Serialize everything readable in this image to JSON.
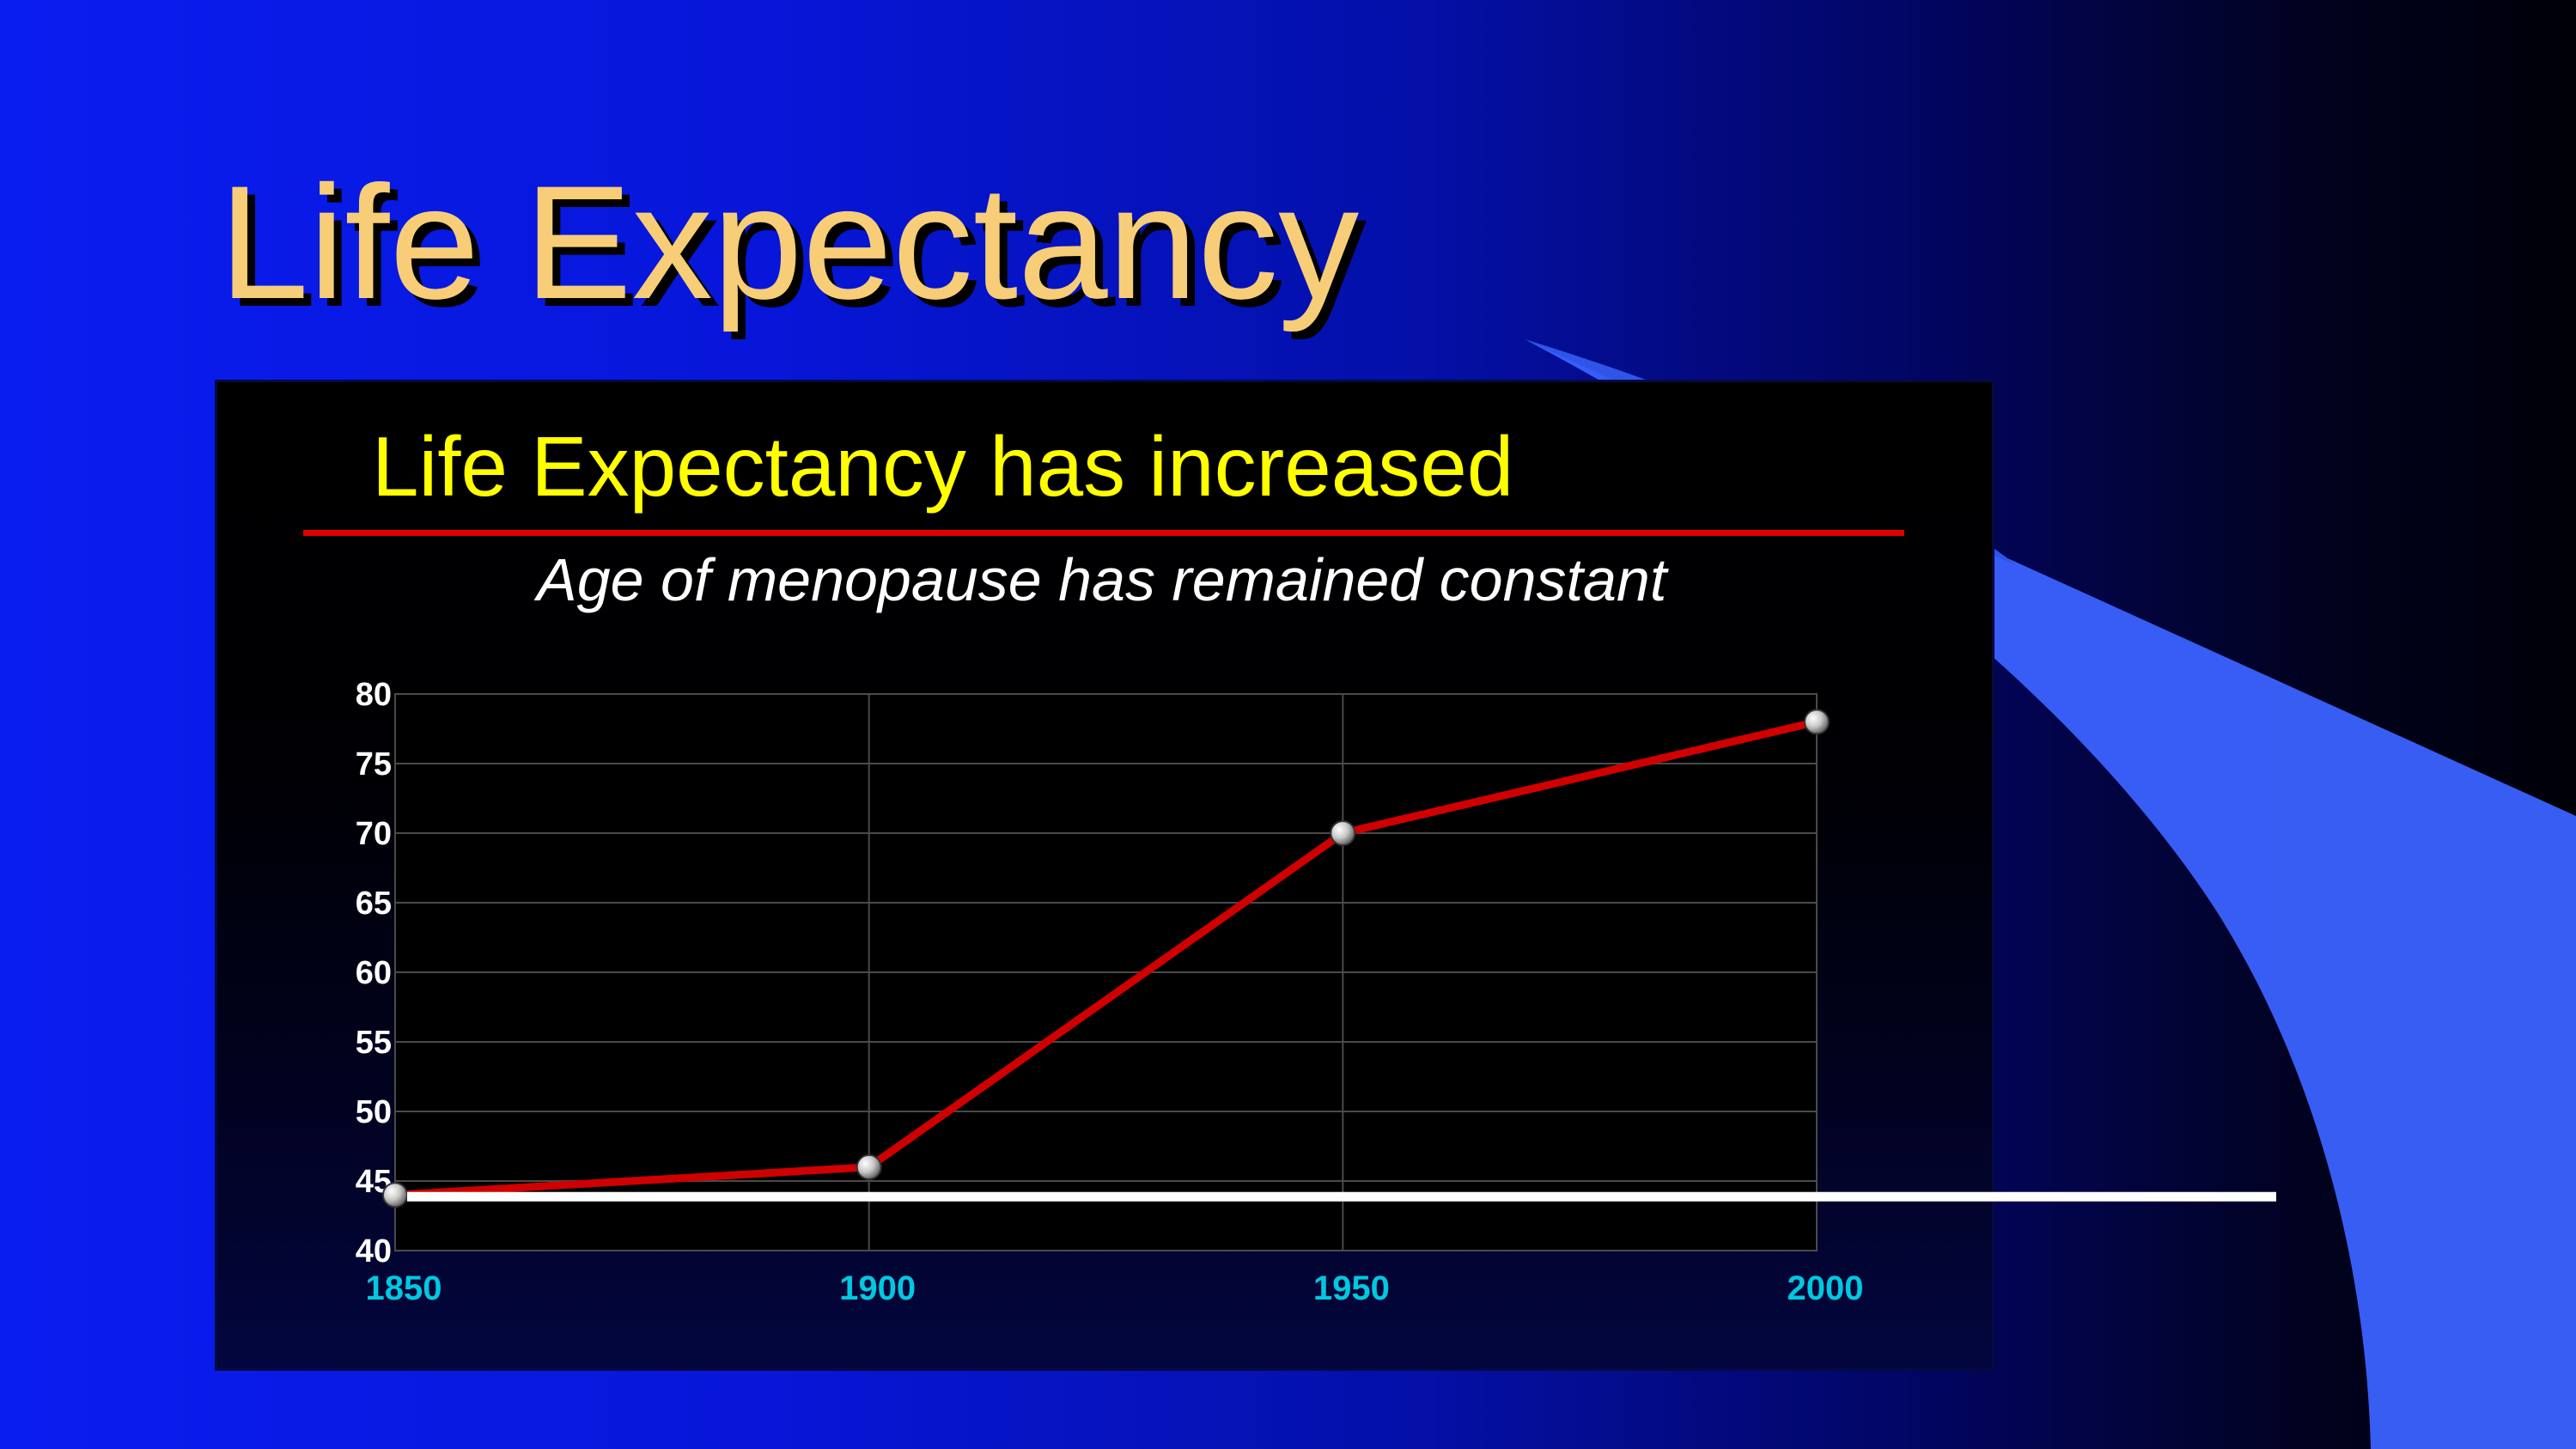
{
  "slide": {
    "title": "Life Expectancy"
  },
  "colors": {
    "slide_title": "#f7cd77",
    "chart_title": "#ffff00",
    "title_rule": "#e00000",
    "series_line": "#d00000",
    "menopause_line": "#ffffff",
    "x_ticks": "#00c8e0",
    "y_ticks": "#ffffff",
    "deco_wedge": "#3a62ff"
  },
  "chart_data": {
    "type": "line",
    "title": "Life Expectancy has increased",
    "subtitle": "Age of menopause has remained constant",
    "xlabel": "",
    "ylabel": "",
    "x": [
      1850,
      1900,
      1950,
      2000
    ],
    "series": [
      {
        "values": [
          44,
          46,
          70,
          78
        ]
      }
    ],
    "reference_lines": [
      {
        "y": 44
      }
    ],
    "xlim": [
      1850,
      2000
    ],
    "ylim": [
      40,
      80
    ],
    "x_ticks": [
      "1850",
      "1900",
      "1950",
      "2000"
    ],
    "y_ticks": [
      "40",
      "45",
      "50",
      "55",
      "60",
      "65",
      "70",
      "75",
      "80"
    ],
    "grid": true,
    "legend": "none"
  }
}
